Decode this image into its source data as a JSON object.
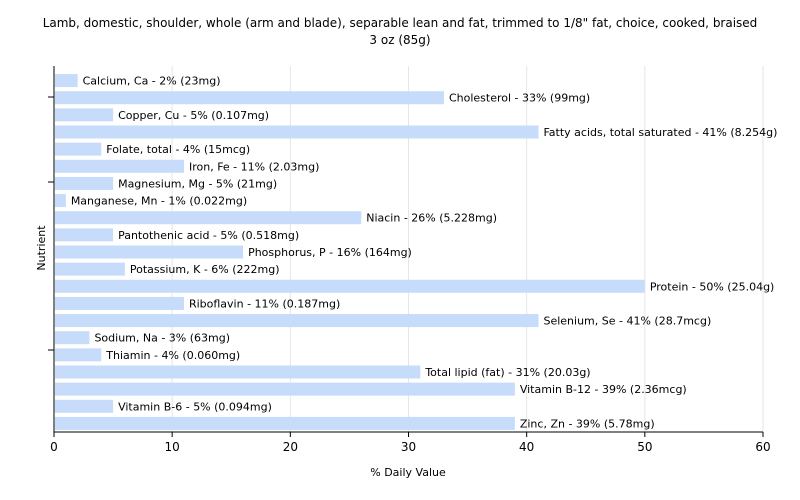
{
  "chart_data": {
    "type": "bar",
    "orientation": "horizontal",
    "title": "Lamb, domestic, shoulder, whole (arm and blade), separable lean and fat, trimmed to 1/8\" fat, choice, cooked, braised",
    "subtitle": "3 oz (85g)",
    "xlabel": "% Daily Value",
    "ylabel": "Nutrient",
    "xlim": [
      0,
      60
    ],
    "xticks": [
      0,
      10,
      20,
      30,
      40,
      50,
      60
    ],
    "grid": true,
    "bar_color": "#c6dcfa",
    "categories": [
      "Calcium, Ca",
      "Cholesterol",
      "Copper, Cu",
      "Fatty acids, total saturated",
      "Folate, total",
      "Iron, Fe",
      "Magnesium, Mg",
      "Manganese, Mn",
      "Niacin",
      "Pantothenic acid",
      "Phosphorus, P",
      "Potassium, K",
      "Protein",
      "Riboflavin",
      "Selenium, Se",
      "Sodium, Na",
      "Thiamin",
      "Total lipid (fat)",
      "Vitamin B-12",
      "Vitamin B-6",
      "Zinc, Zn"
    ],
    "values": [
      2,
      33,
      5,
      41,
      4,
      11,
      5,
      1,
      26,
      5,
      16,
      6,
      50,
      11,
      41,
      3,
      4,
      31,
      39,
      5,
      39
    ],
    "labels": [
      "Calcium, Ca - 2% (23mg)",
      "Cholesterol - 33% (99mg)",
      "Copper, Cu - 5% (0.107mg)",
      "Fatty acids, total saturated - 41% (8.254g)",
      "Folate, total - 4% (15mcg)",
      "Iron, Fe - 11% (2.03mg)",
      "Magnesium, Mg - 5% (21mg)",
      "Manganese, Mn - 1% (0.022mg)",
      "Niacin - 26% (5.228mg)",
      "Pantothenic acid - 5% (0.518mg)",
      "Phosphorus, P - 16% (164mg)",
      "Potassium, K - 6% (222mg)",
      "Protein - 50% (25.04g)",
      "Riboflavin - 11% (0.187mg)",
      "Selenium, Se - 41% (28.7mcg)",
      "Sodium, Na - 3% (63mg)",
      "Thiamin - 4% (0.060mg)",
      "Total lipid (fat) - 31% (20.03g)",
      "Vitamin B-12 - 39% (2.36mcg)",
      "Vitamin B-6 - 5% (0.094mg)",
      "Zinc, Zn - 39% (5.78mg)"
    ]
  }
}
